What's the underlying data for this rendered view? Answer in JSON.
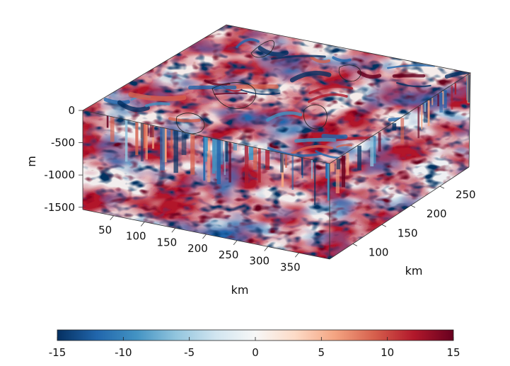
{
  "chart_data": {
    "type": "heatmap",
    "title": "",
    "colormap": "diverging-blue-white-red",
    "colors": {
      "low": "#053061",
      "mid": "#f7f7f7",
      "high": "#67001f"
    },
    "z_axis": {
      "label": "m",
      "ticks": [
        "0",
        "-500",
        "-1000",
        "-1500"
      ],
      "range": [
        -1700,
        0
      ]
    },
    "x_axis": {
      "label": "km",
      "ticks": [
        "50",
        "100",
        "150",
        "200",
        "250",
        "300",
        "350"
      ],
      "range": [
        0,
        400
      ]
    },
    "y_axis": {
      "label": "km",
      "ticks": [
        "100",
        "150",
        "200",
        "250"
      ],
      "range": [
        60,
        300
      ]
    },
    "colorbar": {
      "ticks": [
        "-15",
        "-10",
        "-5",
        "0",
        "5",
        "10",
        "15"
      ],
      "range": [
        -15,
        15
      ]
    },
    "contour_lines": true,
    "grid": false
  }
}
